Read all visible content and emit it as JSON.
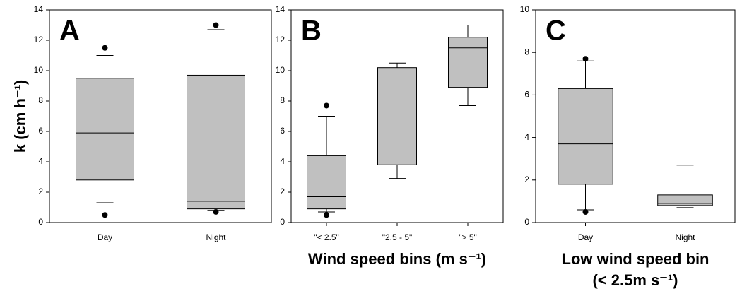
{
  "chart_data": [
    {
      "type": "box",
      "panel_label": "A",
      "y_label": "k (cm h⁻¹)",
      "color": "#c0c0c0",
      "categories": [
        "Day",
        "Night"
      ],
      "ylim": [
        0,
        14
      ],
      "yticks": [
        0,
        2,
        4,
        6,
        8,
        10,
        12,
        14
      ],
      "whisker_low": [
        1.3,
        0.8
      ],
      "q1": [
        2.8,
        0.9
      ],
      "median": [
        5.9,
        1.4
      ],
      "q3": [
        9.5,
        9.7
      ],
      "whisker_high": [
        11.0,
        12.7
      ],
      "outliers": [
        [
          0.5,
          11.5
        ],
        [
          0.7,
          13.0
        ]
      ]
    },
    {
      "type": "box",
      "panel_label": "B",
      "x_label": [
        "Wind speed bins (m s⁻¹)"
      ],
      "color": "#c0c0c0",
      "categories": [
        "\"< 2.5\"",
        "\"2.5 - 5\"",
        "\"> 5\""
      ],
      "ylim": [
        0,
        14
      ],
      "yticks": [
        0,
        2,
        4,
        6,
        8,
        10,
        12,
        14
      ],
      "whisker_low": [
        0.7,
        2.9,
        7.7
      ],
      "q1": [
        0.9,
        3.8,
        8.9
      ],
      "median": [
        1.7,
        5.7,
        11.5
      ],
      "q3": [
        4.4,
        10.2,
        12.2
      ],
      "whisker_high": [
        7.0,
        10.5,
        13.0
      ],
      "outliers": [
        [
          0.5,
          7.7
        ],
        [],
        []
      ]
    },
    {
      "type": "box",
      "panel_label": "C",
      "x_label": [
        "Low wind speed bin",
        "(< 2.5m s⁻¹)"
      ],
      "color": "#c0c0c0",
      "categories": [
        "Day",
        "Night"
      ],
      "ylim": [
        0,
        10
      ],
      "yticks": [
        0,
        2,
        4,
        6,
        8,
        10
      ],
      "whisker_low": [
        0.6,
        0.7
      ],
      "q1": [
        1.8,
        0.8
      ],
      "median": [
        3.7,
        0.9
      ],
      "q3": [
        6.3,
        1.3
      ],
      "whisker_high": [
        7.6,
        2.7
      ],
      "outliers": [
        [
          0.5,
          7.7
        ],
        []
      ]
    }
  ]
}
